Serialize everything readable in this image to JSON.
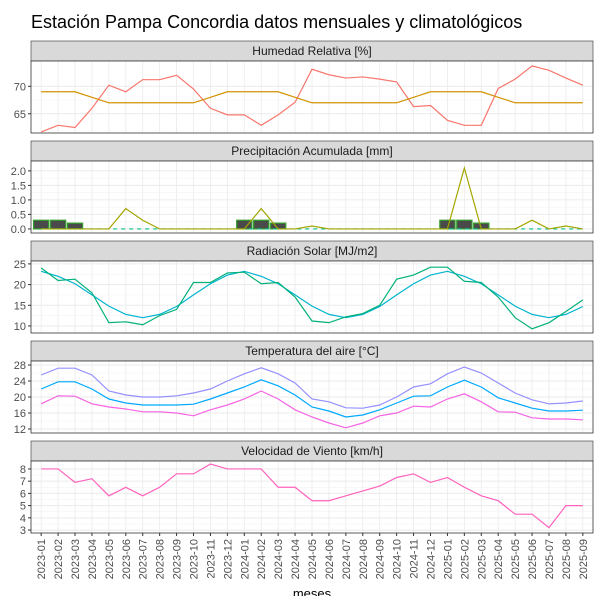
{
  "chart_data": {
    "type": "facet",
    "title": "Estación Pampa Concordia datos mensuales y climatológicos",
    "xlabel": "meses",
    "categories": [
      "2023-01",
      "2023-02",
      "2023-03",
      "2023-04",
      "2023-05",
      "2023-06",
      "2023-07",
      "2023-08",
      "2023-09",
      "2023-10",
      "2023-11",
      "2023-12",
      "2024-01",
      "2024-02",
      "2024-03",
      "2024-04",
      "2024-05",
      "2024-06",
      "2024-07",
      "2024-08",
      "2024-09",
      "2024-10",
      "2024-11",
      "2024-12",
      "2025-01",
      "2025-02",
      "2025-03",
      "2025-04",
      "2025-05",
      "2025-06",
      "2025-07",
      "2025-08",
      "2025-09"
    ],
    "grid": true,
    "panels": [
      {
        "title": "Humedad Relativa [%]",
        "ylim": [
          61.5,
          74.6
        ],
        "yticks": [
          65,
          70
        ],
        "series": [
          {
            "type": "line",
            "color": "#F8766D",
            "values": [
              61.7,
              62.9,
              62.5,
              66,
              70.2,
              69,
              71.2,
              71.2,
              72,
              69.5,
              66,
              64.8,
              64.8,
              62.9,
              64.8,
              67.1,
              73.1,
              72.1,
              71.5,
              71.7,
              71.3,
              70.8,
              66.3,
              66.5,
              63.8,
              62.9,
              62.9,
              69.6,
              71.3,
              73.7,
              72.9,
              71.5,
              70.2
            ]
          },
          {
            "type": "line",
            "color": "#D39200",
            "values": [
              69,
              69,
              69,
              68,
              67,
              67,
              67,
              67,
              67,
              67,
              68,
              69,
              69,
              69,
              69,
              68,
              67,
              67,
              67,
              67,
              67,
              67,
              68,
              69,
              69,
              69,
              69,
              68,
              67,
              67,
              67,
              67,
              67
            ]
          }
        ]
      },
      {
        "title": "Precipitación Acumulada [mm]",
        "ylim": [
          -0.14,
          2.34
        ],
        "yticks": [
          {
            "value": 0,
            "label": "0.0"
          },
          {
            "value": 0.5,
            "label": "0.5"
          },
          {
            "value": 1,
            "label": "1.0"
          },
          {
            "value": 1.5,
            "label": "1.5"
          },
          {
            "value": 2,
            "label": "2.0"
          }
        ],
        "series": [
          {
            "type": "bar",
            "color": "#4a4a4a",
            "outline": "#33a02c",
            "values": [
              0.3,
              0.3,
              0.2,
              0,
              0,
              0,
              0,
              0,
              0,
              0,
              0,
              0,
              0.3,
              0.3,
              0.2,
              0,
              0,
              0,
              0,
              0,
              0,
              0,
              0,
              0,
              0.3,
              0.3,
              0.2,
              0,
              0,
              0,
              0,
              0,
              0
            ]
          },
          {
            "type": "line",
            "color": "#00C08B",
            "dash": true,
            "values": [
              0,
              0,
              0,
              0,
              0,
              0,
              0,
              0,
              0,
              0,
              0,
              0,
              0,
              0,
              0,
              0,
              0,
              0,
              0,
              0,
              0,
              0,
              0,
              0,
              0,
              0,
              0,
              0,
              0,
              0,
              0,
              0,
              0
            ]
          },
          {
            "type": "line",
            "color": "#A3A500",
            "values": [
              0,
              0,
              0,
              0,
              0,
              0.7,
              0.3,
              0,
              0,
              0,
              0,
              0,
              0,
              0.7,
              0,
              0,
              0.1,
              0,
              0,
              0,
              0,
              0,
              0,
              0,
              0,
              2.1,
              0,
              0,
              0,
              0.3,
              0,
              0.1,
              0
            ]
          }
        ]
      },
      {
        "title": "Radiación Solar [MJ/m2]",
        "ylim": [
          8.3,
          25.7
        ],
        "yticks": [
          10,
          15,
          20,
          25
        ],
        "series": [
          {
            "type": "line",
            "color": "#00B4D0",
            "values": [
              23.2,
              22,
              20.2,
              17.5,
              14.8,
              12.8,
              12,
              12.8,
              14.7,
              17.5,
              20.2,
              22.3,
              23.2,
              22,
              20.2,
              17.5,
              14.8,
              12.8,
              12,
              12.8,
              14.7,
              17.5,
              20.2,
              22.3,
              23.2,
              22,
              20.2,
              17.5,
              14.8,
              12.8,
              12,
              12.8,
              14.7
            ]
          },
          {
            "type": "line",
            "color": "#00B07A",
            "values": [
              24,
              21,
              21.3,
              18,
              10.8,
              11,
              10.3,
              12.5,
              14,
              20.5,
              20.5,
              22.8,
              23,
              20.2,
              20.5,
              17,
              11.2,
              10.8,
              12.2,
              13,
              15,
              21.3,
              22.3,
              24.2,
              24.2,
              20.8,
              20.5,
              17,
              12,
              9.3,
              10.8,
              13.5,
              16.3
            ]
          }
        ]
      },
      {
        "title": "Temperatura del aire [°C]",
        "ylim": [
          11,
          29
        ],
        "yticks": [
          12,
          16,
          20,
          24,
          28
        ],
        "series": [
          {
            "type": "line",
            "color": "#9590FF",
            "values": [
              25.5,
              27.2,
              27.2,
              25.5,
              21.5,
              20.5,
              20,
              20,
              20.3,
              21,
              22,
              24,
              25.8,
              27.3,
              25.8,
              23.5,
              19.5,
              18.8,
              17.3,
              17.2,
              18,
              20,
              22.5,
              23.3,
              25.8,
              27.5,
              26,
              23.5,
              21,
              19.3,
              18.3,
              18.5,
              19
            ]
          },
          {
            "type": "line",
            "color": "#00A9FF",
            "values": [
              22,
              23.8,
              23.8,
              22,
              19.5,
              18.5,
              18,
              18,
              18,
              18.2,
              19.5,
              21,
              22.5,
              24.3,
              22.8,
              20.5,
              17.5,
              16.5,
              15,
              15.5,
              16.8,
              18.5,
              20.2,
              20.3,
              22.5,
              24.2,
              22.5,
              19.8,
              18.5,
              17.2,
              16.5,
              16.5,
              16.7
            ]
          },
          {
            "type": "line",
            "color": "#F564E3",
            "values": [
              18.3,
              20.3,
              20.2,
              18.3,
              17.5,
              17,
              16.3,
              16.3,
              16,
              15.3,
              16.8,
              18,
              19.5,
              21.5,
              19.5,
              16.8,
              15,
              13.5,
              12.3,
              13.5,
              15.3,
              16,
              17.7,
              17.5,
              19.5,
              20.8,
              18.8,
              16.3,
              16.2,
              14.8,
              14.5,
              14.5,
              14.3
            ]
          }
        ]
      },
      {
        "title": "Velocidad de Viento [km/h]",
        "ylim": [
          2.76,
          8.65
        ],
        "yticks": [
          3,
          4,
          5,
          6,
          7,
          8
        ],
        "series": [
          {
            "type": "line",
            "color": "#FF62BC",
            "values": [
              8,
              8,
              6.9,
              7.2,
              5.8,
              6.5,
              5.8,
              6.5,
              7.6,
              7.6,
              8.4,
              8,
              8,
              8,
              6.5,
              6.5,
              5.4,
              5.4,
              5.8,
              6.2,
              6.6,
              7.3,
              7.6,
              6.9,
              7.3,
              6.5,
              5.8,
              5.4,
              4.3,
              4.3,
              3.2,
              5,
              5
            ]
          }
        ]
      }
    ]
  }
}
